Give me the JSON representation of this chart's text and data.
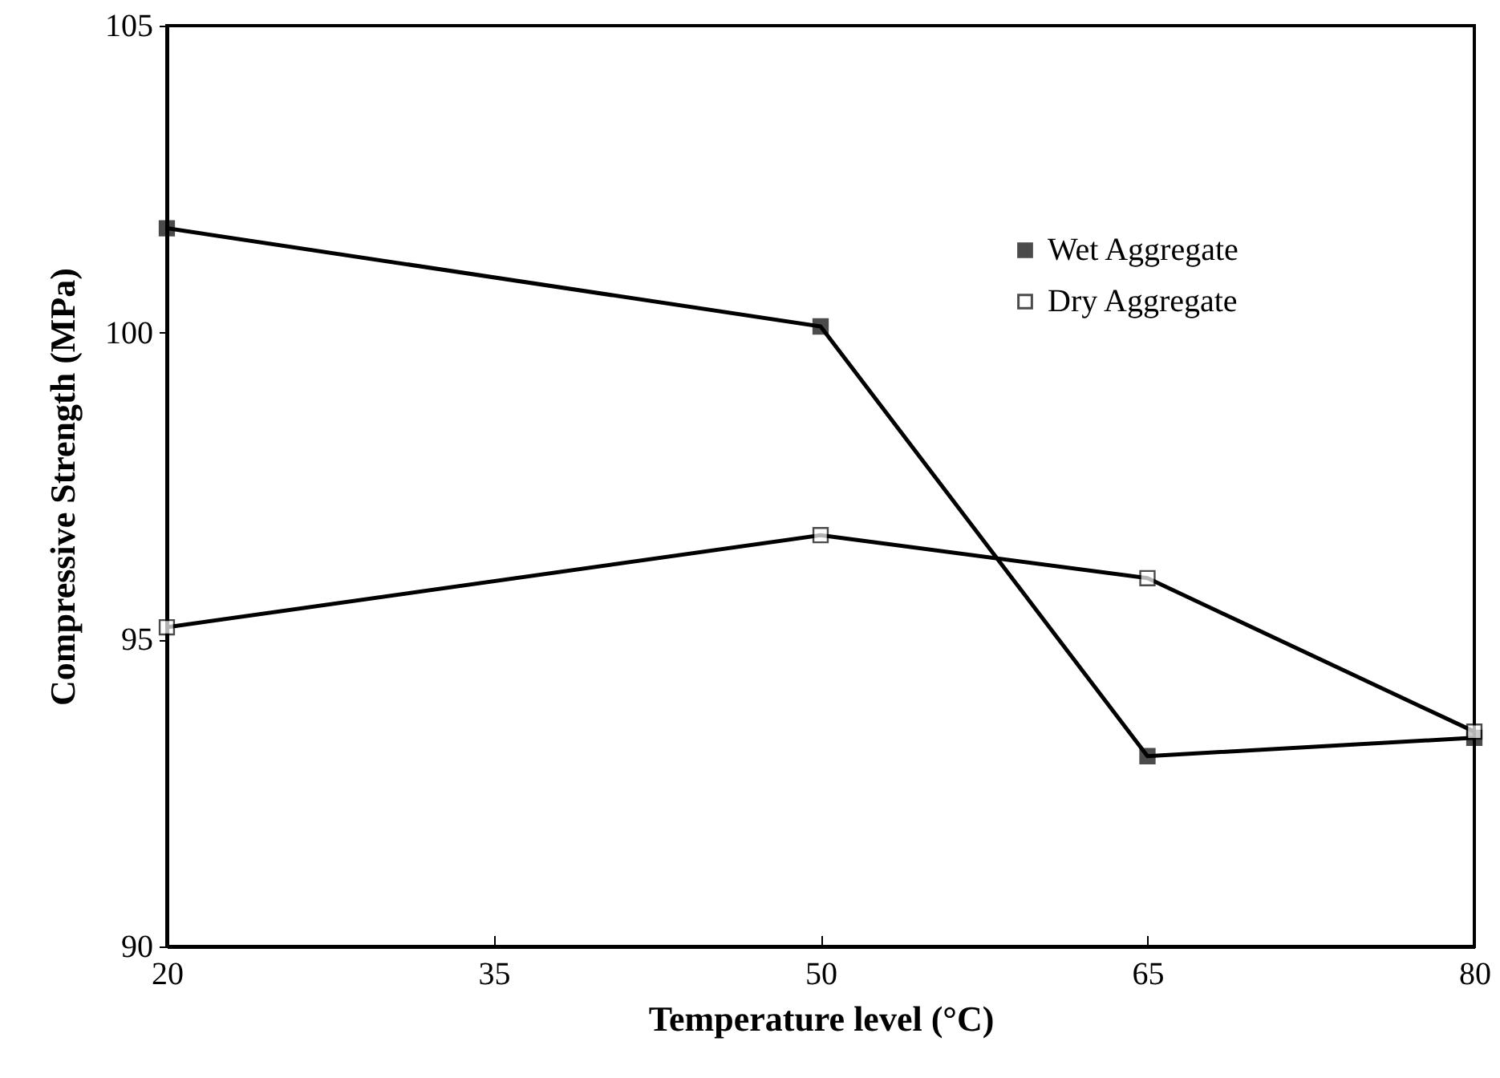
{
  "chart_data": {
    "type": "line",
    "xlabel": "Temperature level (°C)",
    "ylabel": "Compressive Strength (MPa)",
    "x": [
      20,
      50,
      65,
      80
    ],
    "series": [
      {
        "name": "Wet Aggregate",
        "color": "#000000",
        "values": [
          101.7,
          100.1,
          93.1,
          93.4
        ]
      },
      {
        "name": "Dry Aggregate",
        "color": "#000000",
        "values": [
          95.2,
          96.7,
          96.0,
          93.5
        ]
      }
    ],
    "xlim": [
      20,
      80
    ],
    "xticks": [
      20,
      35,
      50,
      65,
      80
    ],
    "ylim": [
      90,
      105
    ],
    "yticks": [
      90,
      95,
      100,
      105
    ],
    "grid": false,
    "legend": "top right",
    "marker": "square",
    "line_style": "solid"
  }
}
